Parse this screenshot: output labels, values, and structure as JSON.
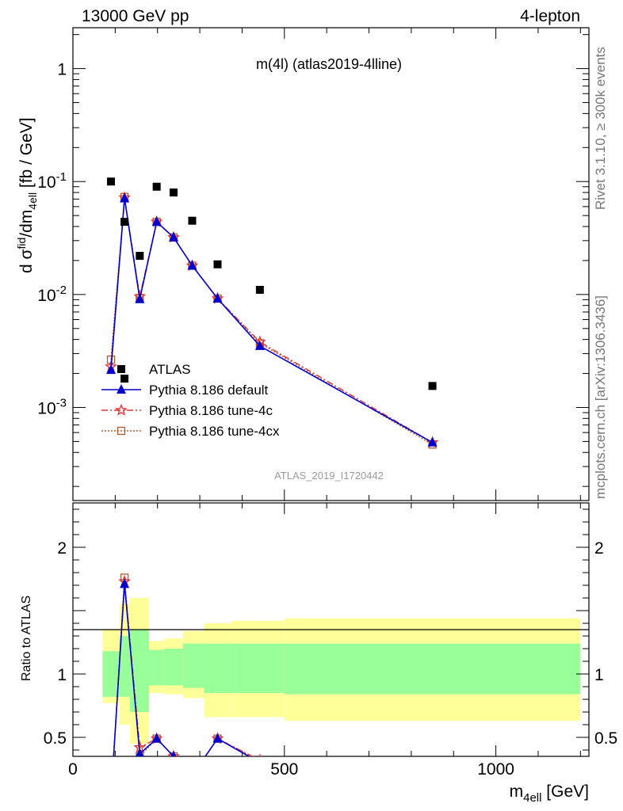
{
  "header": {
    "left": "13000 GeV pp",
    "right": "4-lepton"
  },
  "side_labels": {
    "rivet": "Rivet 3.1.10, ≥ 300k events",
    "mcplots": "mcplots.cern.ch [arXiv:1306.3436]"
  },
  "plot_title": "m(4l)  (atlas2019-4lline)",
  "analysis_id": "ATLAS_2019_I1720442",
  "legend": [
    {
      "name": "ATLAS",
      "color": "#000000",
      "style": "data"
    },
    {
      "name": "Pythia 8.186 default",
      "color": "#0000cc",
      "style": "triangle"
    },
    {
      "name": "Pythia 8.186 tune-4c",
      "color": "#e03030",
      "style": "star"
    },
    {
      "name": "Pythia 8.186 tune-4cx",
      "color": "#b05a2a",
      "style": "square"
    }
  ],
  "main_ylabel": {
    "pre": "d σ",
    "sup1": "fid",
    "mid": "/dm",
    "sub": "4ell",
    "post": " [fb / GeV]"
  },
  "ratio_ylabel": "Ratio to ATLAS",
  "xlabel": {
    "main": "m",
    "sub": "4ell",
    "post": " [GeV]"
  },
  "chart_data": [
    {
      "type": "scatter",
      "title": "m(4l)  (atlas2019-4lline)",
      "xlabel": "m_4ell [GeV]",
      "ylabel": "d σ fid/dm_4ell [fb / GeV]",
      "xlim": [
        0,
        1220
      ],
      "ylim": [
        0.00015,
        2.3
      ],
      "yscale": "log",
      "x_ticks": [
        "0",
        "500",
        "1000"
      ],
      "y_ticks": [
        "10^-3",
        "10^-2",
        "10^-1",
        "1"
      ],
      "series": [
        {
          "name": "ATLAS",
          "x": [
            90,
            122,
            158,
            198,
            238,
            282,
            342,
            442,
            850
          ],
          "y": [
            0.1,
            0.044,
            0.022,
            0.09,
            0.08,
            0.045,
            0.0185,
            0.011,
            0.00155
          ]
        },
        {
          "name": "Pythia 8.186 default",
          "x": [
            90,
            122,
            158,
            198,
            238,
            282,
            342,
            442,
            850
          ],
          "y": [
            0.00215,
            0.071,
            0.0091,
            0.044,
            0.032,
            0.018,
            0.0092,
            0.0035,
            0.00049
          ]
        },
        {
          "name": "Pythia 8.186 tune-4c",
          "x": [
            90,
            122,
            158,
            198,
            238,
            282,
            342,
            442,
            850
          ],
          "y": [
            0.0023,
            0.072,
            0.0096,
            0.044,
            0.032,
            0.018,
            0.0092,
            0.0038,
            0.00049
          ]
        },
        {
          "name": "Pythia 8.186 tune-4cx",
          "x": [
            90,
            122,
            158,
            198,
            238,
            282,
            342,
            442,
            850
          ],
          "y": [
            0.00265,
            0.073,
            0.0093,
            0.044,
            0.032,
            0.018,
            0.0092,
            0.0037,
            0.00047
          ]
        }
      ],
      "atlas_special_point": {
        "x": 122,
        "y": 0.0018
      }
    },
    {
      "type": "line",
      "ylabel": "Ratio to ATLAS",
      "xlim": [
        0,
        1220
      ],
      "ylim": [
        0.35,
        2.35
      ],
      "y_ticks": [
        "0.5",
        "1",
        "2"
      ],
      "uncertainty_bands": [
        {
          "x0": 70,
          "x1": 110,
          "inner": [
            0.82,
            1.18
          ],
          "outer": [
            0.77,
            1.35
          ]
        },
        {
          "x0": 110,
          "x1": 135,
          "inner": [
            0.82,
            1.3
          ],
          "outer": [
            0.6,
            1.55
          ]
        },
        {
          "x0": 135,
          "x1": 180,
          "inner": [
            0.7,
            1.35
          ],
          "outer": [
            0.45,
            1.6
          ]
        },
        {
          "x0": 180,
          "x1": 215,
          "inner": [
            0.91,
            1.19
          ],
          "outer": [
            0.85,
            1.26
          ]
        },
        {
          "x0": 215,
          "x1": 260,
          "inner": [
            0.91,
            1.2
          ],
          "outer": [
            0.84,
            1.28
          ]
        },
        {
          "x0": 260,
          "x1": 310,
          "inner": [
            0.89,
            1.24
          ],
          "outer": [
            0.81,
            1.34
          ]
        },
        {
          "x0": 310,
          "x1": 375,
          "inner": [
            0.85,
            1.24
          ],
          "outer": [
            0.66,
            1.4
          ]
        },
        {
          "x0": 375,
          "x1": 500,
          "inner": [
            0.85,
            1.24
          ],
          "outer": [
            0.66,
            1.42
          ]
        },
        {
          "x0": 500,
          "x1": 1200,
          "inner": [
            0.84,
            1.24
          ],
          "outer": [
            0.63,
            1.44
          ]
        }
      ],
      "series": [
        {
          "name": "Pythia 8.186 default",
          "x": [
            90,
            122,
            158,
            198,
            238,
            282,
            342,
            442
          ],
          "y": [
            0.02,
            1.71,
            0.37,
            0.49,
            0.35,
            0.2,
            0.49,
            0.3
          ]
        },
        {
          "name": "Pythia 8.186 tune-4c",
          "x": [
            90,
            122,
            158,
            198,
            238,
            282,
            342,
            442
          ],
          "y": [
            0.02,
            1.73,
            0.42,
            0.49,
            0.35,
            0.2,
            0.49,
            0.32
          ]
        },
        {
          "name": "Pythia 8.186 tune-4cx",
          "x": [
            90,
            122,
            158,
            198,
            238,
            282,
            342,
            442
          ],
          "y": [
            0.02,
            1.76,
            0.35,
            0.49,
            0.35,
            0.2,
            0.49,
            0.31
          ]
        }
      ]
    }
  ]
}
